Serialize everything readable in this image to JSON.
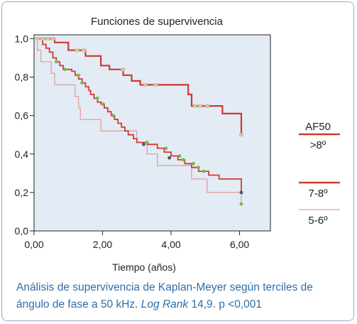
{
  "chart_data": {
    "type": "line",
    "subtype": "kaplan-meier",
    "title": "Funciones de supervivencia",
    "xlabel": "Tiempo (años)",
    "ylabel": "",
    "xlim": [
      0,
      6.9
    ],
    "ylim": [
      0,
      1.02
    ],
    "xticks": [
      "0,00",
      "2,00",
      "4,00",
      "6,00"
    ],
    "xtick_values": [
      0,
      2,
      4,
      6
    ],
    "yticks": [
      "0,0",
      "0,2",
      "0,4",
      "0,6",
      "0,8",
      "1,0"
    ],
    "ytick_values": [
      0,
      0.2,
      0.4,
      0.6,
      0.8,
      1.0
    ],
    "grid": false,
    "legend": {
      "title": "AF50",
      "position": "right",
      "entries": [
        ">8º",
        "7-8º",
        "5-6º"
      ]
    },
    "series": [
      {
        "name": ">8º",
        "color": "#cc3a2f",
        "width": 2.2,
        "points": [
          [
            0.1,
            1.0
          ],
          [
            0.6,
            1.0
          ],
          [
            0.6,
            0.98
          ],
          [
            1.0,
            0.98
          ],
          [
            1.0,
            0.94
          ],
          [
            1.5,
            0.94
          ],
          [
            1.5,
            0.91
          ],
          [
            1.95,
            0.91
          ],
          [
            1.95,
            0.86
          ],
          [
            2.2,
            0.86
          ],
          [
            2.2,
            0.84
          ],
          [
            2.6,
            0.84
          ],
          [
            2.6,
            0.81
          ],
          [
            2.85,
            0.81
          ],
          [
            2.85,
            0.78
          ],
          [
            3.1,
            0.78
          ],
          [
            3.1,
            0.76
          ],
          [
            4.5,
            0.76
          ],
          [
            4.5,
            0.71
          ],
          [
            4.6,
            0.71
          ],
          [
            4.6,
            0.65
          ],
          [
            5.5,
            0.65
          ],
          [
            5.5,
            0.61
          ],
          [
            6.05,
            0.61
          ],
          [
            6.05,
            0.5
          ]
        ],
        "censored": [
          [
            0.1,
            1.0
          ],
          [
            0.25,
            1.0
          ],
          [
            0.4,
            1.0
          ],
          [
            0.55,
            1.0
          ],
          [
            1.25,
            0.94
          ],
          [
            1.45,
            0.94
          ],
          [
            2.6,
            0.84
          ],
          [
            3.25,
            0.76
          ],
          [
            3.55,
            0.76
          ],
          [
            4.7,
            0.65
          ],
          [
            4.85,
            0.65
          ],
          [
            5.05,
            0.65
          ],
          [
            6.05,
            0.5
          ]
        ],
        "censored_color": "#cdc7a0"
      },
      {
        "name": "7-8º",
        "color": "#d23c30",
        "width": 1.8,
        "points": [
          [
            0.1,
            1.0
          ],
          [
            0.25,
            1.0
          ],
          [
            0.25,
            0.97
          ],
          [
            0.35,
            0.97
          ],
          [
            0.35,
            0.95
          ],
          [
            0.45,
            0.95
          ],
          [
            0.45,
            0.93
          ],
          [
            0.55,
            0.93
          ],
          [
            0.55,
            0.9
          ],
          [
            0.65,
            0.9
          ],
          [
            0.65,
            0.88
          ],
          [
            0.75,
            0.88
          ],
          [
            0.75,
            0.86
          ],
          [
            0.85,
            0.86
          ],
          [
            0.85,
            0.84
          ],
          [
            1.1,
            0.84
          ],
          [
            1.1,
            0.83
          ],
          [
            1.2,
            0.83
          ],
          [
            1.2,
            0.81
          ],
          [
            1.3,
            0.81
          ],
          [
            1.3,
            0.79
          ],
          [
            1.4,
            0.79
          ],
          [
            1.4,
            0.77
          ],
          [
            1.5,
            0.77
          ],
          [
            1.5,
            0.75
          ],
          [
            1.6,
            0.75
          ],
          [
            1.6,
            0.73
          ],
          [
            1.65,
            0.73
          ],
          [
            1.65,
            0.71
          ],
          [
            1.75,
            0.71
          ],
          [
            1.75,
            0.69
          ],
          [
            1.85,
            0.69
          ],
          [
            1.85,
            0.67
          ],
          [
            1.95,
            0.67
          ],
          [
            1.95,
            0.66
          ],
          [
            2.05,
            0.66
          ],
          [
            2.05,
            0.64
          ],
          [
            2.15,
            0.64
          ],
          [
            2.15,
            0.62
          ],
          [
            2.25,
            0.62
          ],
          [
            2.25,
            0.6
          ],
          [
            2.35,
            0.6
          ],
          [
            2.35,
            0.58
          ],
          [
            2.45,
            0.58
          ],
          [
            2.45,
            0.56
          ],
          [
            2.55,
            0.56
          ],
          [
            2.55,
            0.54
          ],
          [
            2.65,
            0.54
          ],
          [
            2.65,
            0.52
          ],
          [
            2.75,
            0.52
          ],
          [
            2.75,
            0.5
          ],
          [
            2.9,
            0.5
          ],
          [
            2.9,
            0.48
          ],
          [
            3.0,
            0.48
          ],
          [
            3.0,
            0.46
          ],
          [
            3.3,
            0.46
          ],
          [
            3.3,
            0.45
          ],
          [
            3.6,
            0.45
          ],
          [
            3.6,
            0.43
          ],
          [
            3.8,
            0.43
          ],
          [
            3.8,
            0.41
          ],
          [
            4.0,
            0.41
          ],
          [
            4.0,
            0.39
          ],
          [
            4.2,
            0.39
          ],
          [
            4.2,
            0.37
          ],
          [
            4.4,
            0.37
          ],
          [
            4.4,
            0.35
          ],
          [
            4.6,
            0.35
          ],
          [
            4.6,
            0.33
          ],
          [
            4.8,
            0.33
          ],
          [
            4.8,
            0.31
          ],
          [
            5.1,
            0.31
          ],
          [
            5.1,
            0.29
          ],
          [
            5.4,
            0.29
          ],
          [
            5.4,
            0.27
          ],
          [
            6.05,
            0.27
          ],
          [
            6.05,
            0.2
          ]
        ],
        "censored": [
          [
            0.65,
            0.88
          ],
          [
            0.9,
            0.84
          ],
          [
            1.3,
            0.81
          ],
          [
            1.4,
            0.77
          ],
          [
            1.85,
            0.69
          ],
          [
            2.0,
            0.66
          ],
          [
            2.3,
            0.6
          ],
          [
            3.3,
            0.46
          ],
          [
            3.85,
            0.43
          ],
          [
            4.25,
            0.39
          ],
          [
            4.35,
            0.37
          ],
          [
            4.65,
            0.35
          ],
          [
            4.8,
            0.33
          ],
          [
            4.95,
            0.31
          ],
          [
            6.05,
            0.2
          ]
        ],
        "censored_color": "#7bb552",
        "event_marks": [
          [
            3.2,
            0.45
          ],
          [
            3.95,
            0.38
          ],
          [
            6.05,
            0.2
          ]
        ],
        "event_color": "#3d5a7a"
      },
      {
        "name": "5-6º",
        "color": "#e08a82",
        "width": 1.0,
        "points": [
          [
            0.1,
            1.0
          ],
          [
            0.1,
            0.94
          ],
          [
            0.2,
            0.94
          ],
          [
            0.2,
            0.88
          ],
          [
            0.5,
            0.88
          ],
          [
            0.5,
            0.82
          ],
          [
            0.6,
            0.82
          ],
          [
            0.6,
            0.76
          ],
          [
            1.2,
            0.76
          ],
          [
            1.2,
            0.7
          ],
          [
            1.3,
            0.7
          ],
          [
            1.3,
            0.64
          ],
          [
            1.35,
            0.64
          ],
          [
            1.35,
            0.58
          ],
          [
            1.95,
            0.58
          ],
          [
            1.95,
            0.52
          ],
          [
            3.0,
            0.52
          ],
          [
            3.0,
            0.46
          ],
          [
            3.3,
            0.46
          ],
          [
            3.3,
            0.4
          ],
          [
            3.6,
            0.4
          ],
          [
            3.6,
            0.34
          ],
          [
            4.6,
            0.34
          ],
          [
            4.6,
            0.27
          ],
          [
            5.05,
            0.27
          ],
          [
            5.05,
            0.2
          ],
          [
            6.05,
            0.2
          ],
          [
            6.05,
            0.14
          ]
        ],
        "censored": [
          [
            6.05,
            0.14
          ]
        ],
        "censored_color": "#7bb552"
      }
    ]
  },
  "caption": {
    "line1": "Análisis de supervivencia de Kaplan-Meyer según terciles de",
    "line2_pre": "ángulo de fase a 50 kHz. ",
    "line2_em": "Log Rank",
    "line2_post": " 14,9. p <0,001"
  }
}
